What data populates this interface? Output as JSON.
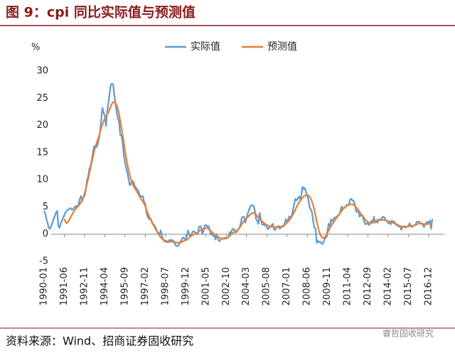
{
  "chart_data": {
    "type": "line",
    "title": "图 9：cpi 同比实际值与预测值",
    "ylabel": "%",
    "source": "资料来源：Wind、招商证券固收研究",
    "watermark": "睿哲固收研究",
    "legend": "top",
    "ylim": [
      -5,
      30
    ],
    "yticks": [
      -5,
      0,
      5,
      10,
      15,
      20,
      25,
      30
    ],
    "categories": [
      "1990-01",
      null,
      null,
      null,
      null,
      null,
      null,
      null,
      null,
      null,
      null,
      null,
      null,
      null,
      null,
      null,
      null,
      "1991-06",
      null,
      null,
      null,
      null,
      null,
      null,
      null,
      null,
      null,
      null,
      null,
      null,
      null,
      null,
      null,
      null,
      "1992-11",
      null,
      null,
      null,
      null,
      null,
      null,
      null,
      null,
      null,
      null,
      null,
      null,
      null,
      null,
      null,
      null,
      "1994-04",
      null,
      null,
      null,
      null,
      null,
      null,
      null,
      null,
      null,
      null,
      null,
      null,
      null,
      null,
      null,
      null,
      "1995-09",
      null,
      null,
      null,
      null,
      null,
      null,
      null,
      null,
      null,
      null,
      null,
      null,
      null,
      null,
      null,
      null,
      "1997-02",
      null,
      null,
      null,
      null,
      null,
      null,
      null,
      null,
      null,
      null,
      null,
      null,
      null,
      null,
      null,
      null,
      "1998-07",
      null,
      null,
      null,
      null,
      null,
      null,
      null,
      null,
      null,
      null,
      null,
      null,
      null,
      null,
      null,
      null,
      "1999-12",
      null,
      null,
      null,
      null,
      null,
      null,
      null,
      null,
      null,
      null,
      null,
      null,
      null,
      null,
      null,
      null,
      "2001-05",
      null,
      null,
      null,
      null,
      null,
      null,
      null,
      null,
      null,
      null,
      null,
      null,
      null,
      null,
      null,
      null,
      "2002-10",
      null,
      null,
      null,
      null,
      null,
      null,
      null,
      null,
      null,
      null,
      null,
      null,
      null,
      null,
      null,
      null,
      "2004-03",
      null,
      null,
      null,
      null,
      null,
      null,
      null,
      null,
      null,
      null,
      null,
      null,
      null,
      null,
      null,
      null,
      "2005-08",
      null,
      null,
      null,
      null,
      null,
      null,
      null,
      null,
      null,
      null,
      null,
      null,
      null,
      null,
      null,
      null,
      "2007-01",
      null,
      null,
      null,
      null,
      null,
      null,
      null,
      null,
      null,
      null,
      null,
      null,
      null,
      null,
      null,
      null,
      "2008-06",
      null,
      null,
      null,
      null,
      null,
      null,
      null,
      null,
      null,
      null,
      null,
      null,
      null,
      null,
      null,
      null,
      "2009-11",
      null,
      null,
      null,
      null,
      null,
      null,
      null,
      null,
      null,
      null,
      null,
      null,
      null,
      null,
      null,
      null,
      "2011-04",
      null,
      null,
      null,
      null,
      null,
      null,
      null,
      null,
      null,
      null,
      null,
      null,
      null,
      null,
      null,
      null,
      "2012-09",
      null,
      null,
      null,
      null,
      null,
      null,
      null,
      null,
      null,
      null,
      null,
      null,
      null,
      null,
      null,
      null,
      "2014-02",
      null,
      null,
      null,
      null,
      null,
      null,
      null,
      null,
      null,
      null,
      null,
      null,
      null,
      null,
      null,
      null,
      "2015-07",
      null,
      null,
      null,
      null,
      null,
      null,
      null,
      null,
      null,
      null,
      null,
      null,
      null,
      null,
      null,
      null,
      "2016-12",
      null,
      null,
      null
    ],
    "series": [
      {
        "name": "实际值",
        "color": "#5b9bd5",
        "values": [
          4.3,
          3.8,
          2.8,
          2.0,
          1.1,
          1.0,
          1.5,
          2.1,
          2.8,
          3.3,
          4.0,
          4.3,
          1.5,
          1.2,
          2.0,
          2.5,
          3.0,
          3.5,
          4.0,
          4.3,
          4.5,
          4.6,
          4.8,
          4.6,
          4.5,
          4.8,
          5.0,
          5.2,
          5.0,
          5.5,
          6.5,
          7.0,
          6.0,
          6.8,
          7.0,
          8.0,
          10.0,
          10.5,
          12.0,
          12.5,
          13.5,
          15.0,
          16.2,
          16.0,
          16.0,
          16.5,
          17.5,
          18.8,
          21.1,
          23.2,
          22.4,
          21.7,
          19.9,
          22.6,
          24.0,
          25.8,
          27.4,
          27.7,
          27.5,
          25.5,
          24.1,
          22.4,
          21.3,
          20.7,
          18.2,
          18.2,
          16.7,
          14.5,
          13.2,
          12.1,
          11.2,
          10.1,
          9.0,
          9.3,
          9.8,
          9.7,
          8.9,
          8.6,
          8.3,
          8.1,
          7.4,
          7.0,
          6.9,
          7.0,
          5.9,
          5.6,
          4.0,
          3.2,
          2.8,
          2.8,
          2.7,
          1.9,
          1.8,
          1.5,
          1.1,
          0.4,
          0.3,
          -0.1,
          0.7,
          -0.3,
          -1.0,
          -1.3,
          -1.4,
          -1.4,
          -1.5,
          -1.1,
          -1.2,
          -1.0,
          -1.2,
          -1.3,
          -1.8,
          -2.2,
          -2.2,
          -2.1,
          -1.4,
          -1.3,
          -0.8,
          -0.6,
          -0.9,
          -1.0,
          -0.2,
          0.7,
          -0.2,
          -0.3,
          0.1,
          0.5,
          0.5,
          0.3,
          0.0,
          0.0,
          1.3,
          1.5,
          1.2,
          0.0,
          0.8,
          1.6,
          1.7,
          1.4,
          1.5,
          1.0,
          -0.1,
          0.2,
          -0.3,
          -0.3,
          -1.0,
          0.0,
          -0.8,
          -1.3,
          -1.1,
          -0.8,
          -0.9,
          -0.7,
          -0.7,
          -0.8,
          -0.7,
          -0.4,
          0.4,
          0.2,
          0.9,
          1.0,
          0.7,
          0.3,
          0.5,
          0.9,
          1.1,
          1.8,
          3.0,
          3.2,
          3.2,
          2.1,
          3.0,
          3.8,
          4.4,
          5.0,
          5.3,
          5.3,
          5.2,
          4.3,
          2.8,
          2.4,
          1.9,
          3.9,
          2.7,
          1.8,
          1.8,
          1.6,
          1.8,
          1.3,
          0.9,
          1.2,
          1.3,
          1.6,
          1.9,
          0.9,
          0.8,
          1.2,
          1.4,
          1.5,
          1.0,
          1.3,
          1.5,
          1.4,
          1.9,
          2.8,
          2.2,
          2.7,
          3.3,
          3.0,
          3.4,
          4.4,
          5.6,
          6.5,
          6.2,
          6.5,
          6.9,
          6.5,
          7.1,
          8.7,
          8.3,
          8.5,
          7.7,
          7.1,
          6.3,
          4.9,
          4.6,
          4.0,
          2.4,
          1.2,
          1.0,
          -1.6,
          -1.2,
          -1.5,
          -1.4,
          -1.7,
          -1.8,
          -1.2,
          -0.8,
          -0.5,
          0.6,
          1.9,
          1.5,
          2.7,
          2.4,
          2.8,
          3.1,
          2.9,
          3.3,
          3.5,
          3.6,
          4.4,
          5.1,
          4.6,
          4.9,
          4.9,
          5.4,
          5.3,
          5.5,
          6.4,
          6.5,
          6.2,
          6.1,
          5.5,
          4.2,
          4.1,
          4.5,
          3.2,
          3.6,
          3.4,
          3.0,
          2.2,
          1.8,
          2.0,
          1.9,
          1.7,
          2.0,
          2.5,
          2.0,
          3.2,
          2.1,
          2.4,
          2.1,
          2.7,
          2.7,
          2.6,
          3.1,
          3.2,
          3.0,
          2.5,
          2.5,
          2.0,
          2.4,
          1.8,
          2.5,
          2.3,
          2.3,
          2.0,
          1.6,
          1.6,
          1.4,
          1.5,
          0.8,
          1.4,
          1.4,
          1.5,
          1.2,
          1.4,
          1.6,
          2.0,
          1.6,
          1.3,
          1.5,
          1.6,
          1.8,
          2.3,
          2.3,
          2.3,
          2.0,
          1.9,
          1.8,
          1.3,
          1.9,
          2.1,
          2.3,
          2.1,
          2.5,
          1.0,
          2.8
        ]
      },
      {
        "name": "预测值",
        "color": "#ed7d31",
        "values": [
          null,
          null,
          null,
          null,
          null,
          null,
          null,
          null,
          null,
          null,
          null,
          null,
          null,
          null,
          null,
          null,
          null,
          2.8,
          2.3,
          2.0,
          2.2,
          2.6,
          3.0,
          3.4,
          3.8,
          4.2,
          4.5,
          4.8,
          5.0,
          5.2,
          5.5,
          5.9,
          6.3,
          6.8,
          7.5,
          8.3,
          9.2,
          10.2,
          11.2,
          12.2,
          13.2,
          14.2,
          15.2,
          16.0,
          16.7,
          17.3,
          18.0,
          18.8,
          19.5,
          20.2,
          20.8,
          21.3,
          21.7,
          22.0,
          22.4,
          22.9,
          23.5,
          24.0,
          24.3,
          24.3,
          24.1,
          23.7,
          23.0,
          22.0,
          20.8,
          19.5,
          18.2,
          16.8,
          15.3,
          14.0,
          12.8,
          11.7,
          10.8,
          10.0,
          9.4,
          8.9,
          8.5,
          8.2,
          7.8,
          7.4,
          7.0,
          6.6,
          6.3,
          6.0,
          5.6,
          5.1,
          4.5,
          3.9,
          3.4,
          2.9,
          2.5,
          2.1,
          1.6,
          1.2,
          0.8,
          0.4,
          0.1,
          -0.3,
          -0.6,
          -0.8,
          -1.0,
          -1.1,
          -1.2,
          -1.3,
          -1.3,
          -1.4,
          -1.4,
          -1.4,
          -1.4,
          -1.5,
          -1.5,
          -1.5,
          -1.6,
          -1.6,
          -1.6,
          -1.5,
          -1.4,
          -1.3,
          -1.2,
          -1.1,
          -1.0,
          -0.8,
          -0.6,
          -0.4,
          -0.3,
          -0.1,
          0.0,
          0.1,
          0.2,
          0.3,
          0.5,
          0.7,
          0.8,
          0.9,
          1.0,
          1.1,
          1.1,
          1.1,
          1.0,
          0.8,
          0.6,
          0.4,
          0.2,
          0.0,
          -0.2,
          -0.4,
          -0.5,
          -0.6,
          -0.7,
          -0.8,
          -0.8,
          -0.8,
          -0.8,
          -0.7,
          -0.6,
          -0.5,
          -0.3,
          -0.1,
          0.1,
          0.3,
          0.5,
          0.6,
          0.7,
          0.9,
          1.1,
          1.4,
          1.8,
          2.2,
          2.5,
          2.7,
          2.9,
          3.1,
          3.4,
          3.6,
          3.8,
          3.9,
          3.9,
          3.8,
          3.6,
          3.3,
          3.0,
          2.8,
          2.6,
          2.4,
          2.2,
          2.0,
          1.8,
          1.7,
          1.6,
          1.5,
          1.4,
          1.4,
          1.4,
          1.4,
          1.3,
          1.3,
          1.3,
          1.3,
          1.4,
          1.4,
          1.5,
          1.6,
          1.7,
          1.9,
          2.1,
          2.3,
          2.6,
          2.9,
          3.2,
          3.6,
          4.0,
          4.5,
          5.0,
          5.4,
          5.8,
          6.1,
          6.4,
          6.7,
          6.9,
          7.1,
          7.2,
          7.2,
          7.1,
          6.9,
          6.5,
          6.0,
          5.3,
          4.4,
          3.4,
          2.3,
          1.3,
          0.5,
          -0.1,
          -0.5,
          -0.7,
          -0.7,
          -0.5,
          -0.2,
          0.2,
          0.7,
          1.1,
          1.5,
          1.9,
          2.2,
          2.5,
          2.8,
          3.1,
          3.4,
          3.7,
          4.0,
          4.3,
          4.6,
          4.8,
          5.0,
          5.2,
          5.3,
          5.4,
          5.5,
          5.5,
          5.5,
          5.4,
          5.2,
          5.0,
          4.7,
          4.4,
          4.1,
          3.8,
          3.5,
          3.2,
          2.9,
          2.6,
          2.4,
          2.2,
          2.1,
          2.1,
          2.1,
          2.2,
          2.3,
          2.4,
          2.5,
          2.6,
          2.6,
          2.6,
          2.6,
          2.6,
          2.6,
          2.6,
          2.5,
          2.4,
          2.3,
          2.2,
          2.2,
          2.1,
          2.1,
          2.0,
          1.9,
          1.8,
          1.7,
          1.6,
          1.5,
          1.4,
          1.3,
          1.3,
          1.3,
          1.3,
          1.4,
          1.4,
          1.5,
          1.5,
          1.5,
          1.6,
          1.6,
          1.7,
          1.8,
          1.9,
          2.0,
          2.0,
          2.0,
          1.9,
          1.8,
          1.8,
          1.8,
          1.9,
          1.9,
          1.9,
          1.8,
          1.8
        ]
      }
    ]
  }
}
